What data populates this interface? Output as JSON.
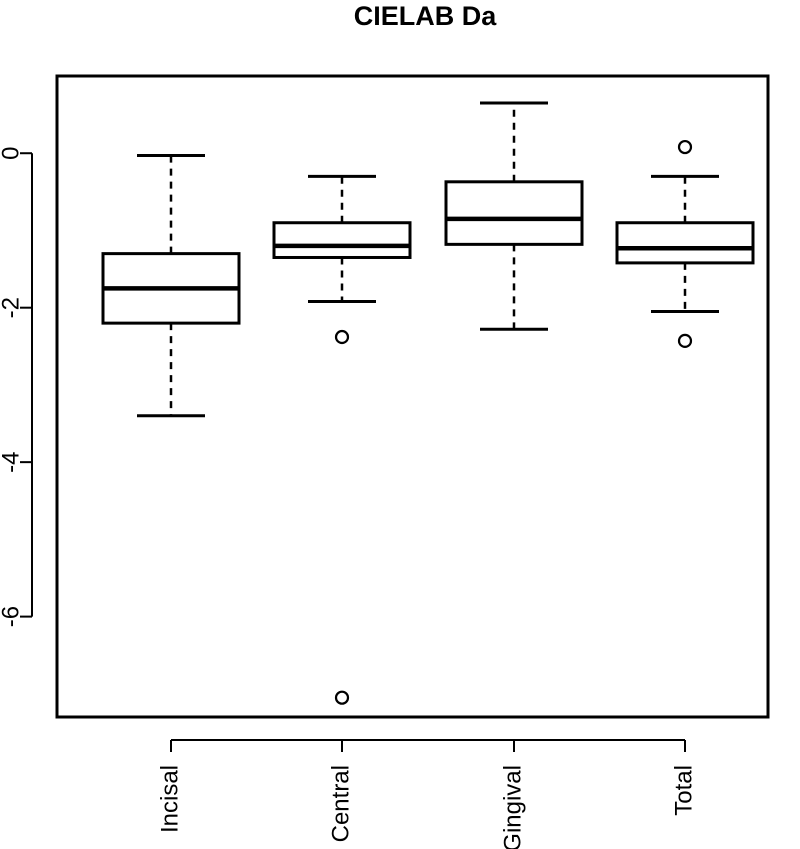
{
  "chart_data": {
    "type": "boxplot",
    "title": "CIELAB Da",
    "xlabel": "",
    "ylabel": "",
    "categories": [
      "Incisal",
      "Central",
      "Gingival",
      "Total"
    ],
    "boxes": [
      {
        "category": "Incisal",
        "whisker_low": -3.4,
        "q1": -2.2,
        "median": -1.75,
        "q3": -1.3,
        "whisker_high": -0.03,
        "outliers": []
      },
      {
        "category": "Central",
        "whisker_low": -1.92,
        "q1": -1.35,
        "median": -1.2,
        "q3": -0.9,
        "whisker_high": -0.3,
        "outliers": [
          -2.38,
          -7.05
        ]
      },
      {
        "category": "Gingival",
        "whisker_low": -2.28,
        "q1": -1.18,
        "median": -0.85,
        "q3": -0.37,
        "whisker_high": 0.65,
        "outliers": []
      },
      {
        "category": "Total",
        "whisker_low": -2.05,
        "q1": -1.42,
        "median": -1.23,
        "q3": -0.9,
        "whisker_high": -0.3,
        "outliers": [
          0.08,
          -2.43
        ]
      }
    ],
    "ylim": [
      -7.3,
      1.0
    ],
    "yticks": [
      0,
      -2,
      -4,
      -6
    ],
    "ytick_labels": [
      "0",
      "-2",
      "-4",
      "-6"
    ],
    "grid": false,
    "legend": "none"
  }
}
